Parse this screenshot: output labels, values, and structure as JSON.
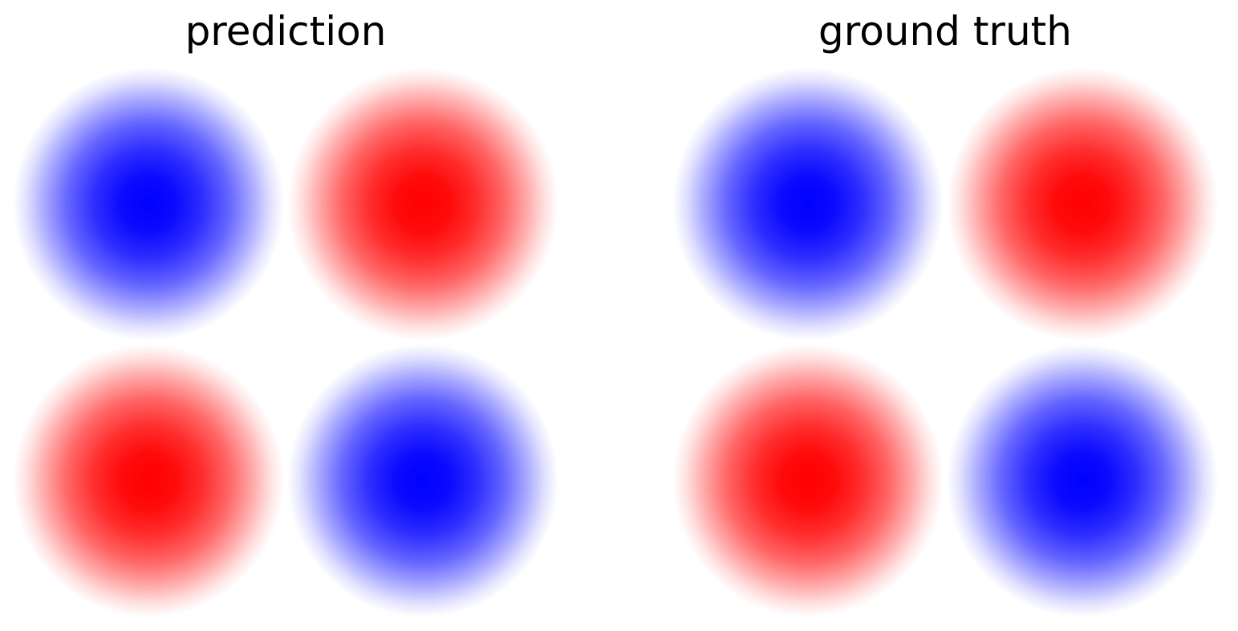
{
  "chart_data": [
    {
      "type": "heatmap",
      "title": "prediction",
      "field": "sin(pi*x)*sin(pi*y)",
      "xlim": [
        -1,
        1
      ],
      "ylim": [
        -1,
        1
      ],
      "colormap": "bwr",
      "cells": [
        {
          "row": 0,
          "col": 0,
          "sign": "negative",
          "peak": -1.0
        },
        {
          "row": 0,
          "col": 1,
          "sign": "positive",
          "peak": 1.0
        },
        {
          "row": 1,
          "col": 0,
          "sign": "positive",
          "peak": 1.0
        },
        {
          "row": 1,
          "col": 1,
          "sign": "negative",
          "peak": -1.0
        }
      ],
      "grid": false,
      "axes_visible": false
    },
    {
      "type": "heatmap",
      "title": "ground truth",
      "field": "sin(pi*x)*sin(pi*y)",
      "xlim": [
        -1,
        1
      ],
      "ylim": [
        -1,
        1
      ],
      "colormap": "bwr",
      "cells": [
        {
          "row": 0,
          "col": 0,
          "sign": "negative",
          "peak": -1.0
        },
        {
          "row": 0,
          "col": 1,
          "sign": "positive",
          "peak": 1.0
        },
        {
          "row": 1,
          "col": 0,
          "sign": "positive",
          "peak": 1.0
        },
        {
          "row": 1,
          "col": 1,
          "sign": "negative",
          "peak": -1.0
        }
      ],
      "grid": false,
      "axes_visible": false
    }
  ],
  "colors": {
    "negative": "#0000ff",
    "positive": "#ff0000",
    "zero": "#ffffff"
  }
}
